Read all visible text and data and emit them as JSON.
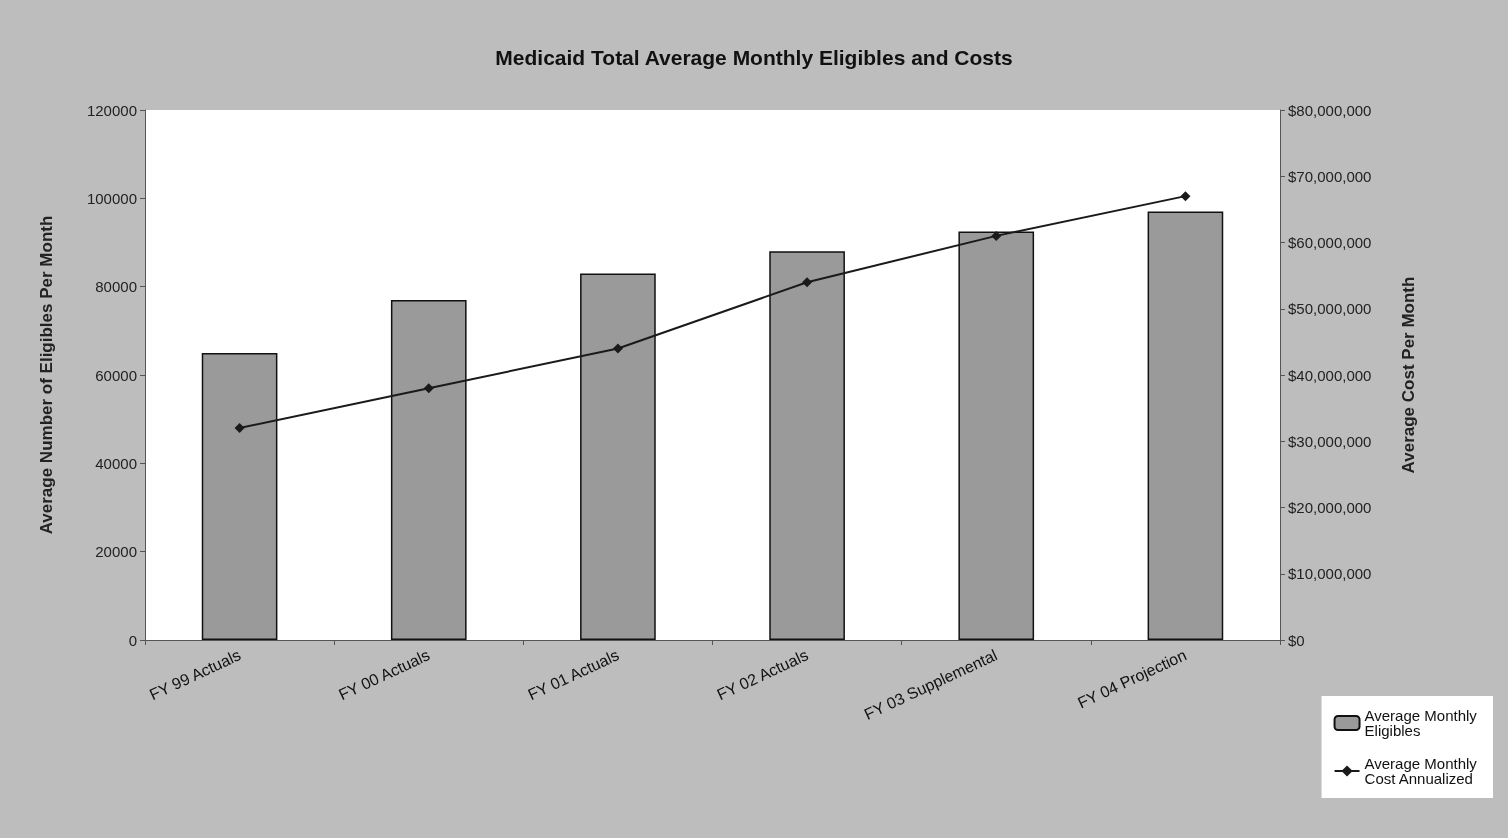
{
  "chart_data": {
    "type": "bar",
    "title": "Medicaid Total Average Monthly Eligibles and Costs",
    "ylabel": "Average Number of Eligibles Per Month",
    "y2label": "Average Cost Per Month",
    "categories": [
      "FY 99 Actuals",
      "FY 00 Actuals",
      "FY 01 Actuals",
      "FY 02 Actuals",
      "FY 03 Supplemental",
      "FY 04 Projection"
    ],
    "series": [
      {
        "name": "Average Monthly Eligibles",
        "type": "bar",
        "color": "#9a9a9a",
        "values": [
          65000,
          77000,
          83000,
          88000,
          92500,
          97000
        ]
      },
      {
        "name": "Average Monthly Cost Annualized",
        "type": "line",
        "axis": "y2",
        "color": "#1a1a1a",
        "marker": "diamond",
        "line_style": "solid",
        "values": [
          32000000,
          38000000,
          44000000,
          54000000,
          61000000,
          67000000
        ]
      }
    ],
    "ylim": [
      0,
      120000
    ],
    "yticks": [
      0,
      20000,
      40000,
      60000,
      80000,
      100000,
      120000
    ],
    "y2lim": [
      0,
      80000000
    ],
    "y2ticks": [
      {
        "value": 0,
        "label": "$0"
      },
      {
        "value": 10000000,
        "label": "$10,000,000"
      },
      {
        "value": 20000000,
        "label": "$20,000,000"
      },
      {
        "value": 30000000,
        "label": "$30,000,000"
      },
      {
        "value": 40000000,
        "label": "$40,000,000"
      },
      {
        "value": 50000000,
        "label": "$50,000,000"
      },
      {
        "value": 60000000,
        "label": "$60,000,000"
      },
      {
        "value": 70000000,
        "label": "$70,000,000"
      },
      {
        "value": 80000000,
        "label": "$80,000,000"
      }
    ],
    "legend": "bottom right",
    "grid": false
  }
}
